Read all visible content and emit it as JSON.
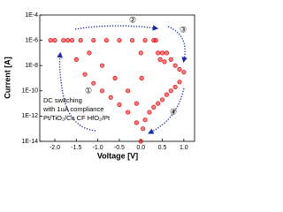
{
  "chart_data": {
    "type": "scatter",
    "log_y": true,
    "ylabel": "Current [A]",
    "xlabel": "Voltage [V]",
    "annotations": [
      "②",
      "③",
      "①",
      "④",
      "DC switching",
      "with 1uA compliance",
      "Pt/TiO₂/Cu CF HfO₂/Pt"
    ],
    "color": "#e8191c",
    "x": [
      1.0,
      0.9,
      0.8,
      0.7,
      0.6,
      0.5,
      0.4,
      0.3,
      0.2,
      0.1,
      0.05,
      0.0,
      -0.1,
      -0.3,
      -0.5,
      -0.7,
      -0.9,
      -1.1,
      -1.3,
      -1.5,
      -1.6,
      -1.8,
      -2.0,
      -2.1,
      -1.7,
      -1.4,
      -1.1,
      -0.8,
      -0.5,
      -0.2,
      0.1,
      0.3,
      0.35,
      0.4,
      0.45,
      0.5,
      0.55,
      0.6,
      0.7,
      0.8,
      0.9,
      -1.2,
      -0.9,
      -0.6,
      -0.3,
      -0.1,
      0.0,
      0.02
    ],
    "values": [
      3e-09,
      5e-10,
      2e-10,
      1e-10,
      5e-11,
      2e-11,
      1e-11,
      5e-12,
      2e-12,
      5e-13,
      1e-13,
      1e-14,
      3e-13,
      2e-12,
      8e-12,
      3e-11,
      1e-10,
      4e-10,
      2e-09,
      3e-08,
      1e-06,
      1e-06,
      1e-06,
      1e-06,
      1e-06,
      1e-06,
      1e-06,
      1e-06,
      1e-06,
      1e-06,
      1e-06,
      1e-06,
      1e-06,
      1e-07,
      3e-08,
      1e-07,
      2e-08,
      1e-07,
      3e-08,
      1e-08,
      5e-09,
      1e-07,
      1e-08,
      1e-09,
      1e-10,
      1e-11,
      1e-07,
      1e-09
    ],
    "xlim": [
      -2.35,
      1.25
    ],
    "ylim": [
      1e-14,
      0.0001
    ],
    "xticks": [
      {
        "value": -2,
        "label": "-2.0"
      },
      -1.5,
      {
        "value": -1,
        "label": "-1.0"
      },
      -0.5,
      {
        "value": 0,
        "label": "0.0"
      },
      0.5,
      {
        "value": 1,
        "label": "1.0"
      }
    ],
    "yticks": [
      {
        "value": 0.0001,
        "label": "1E-4"
      },
      {
        "value": 1e-06,
        "label": "1E-6"
      },
      {
        "value": 1e-08,
        "label": "1E-8"
      },
      {
        "value": 1e-10,
        "label": "1E-10"
      },
      {
        "value": 1e-12,
        "label": "1E-12"
      },
      {
        "value": 1e-14,
        "label": "1E-14"
      }
    ]
  }
}
